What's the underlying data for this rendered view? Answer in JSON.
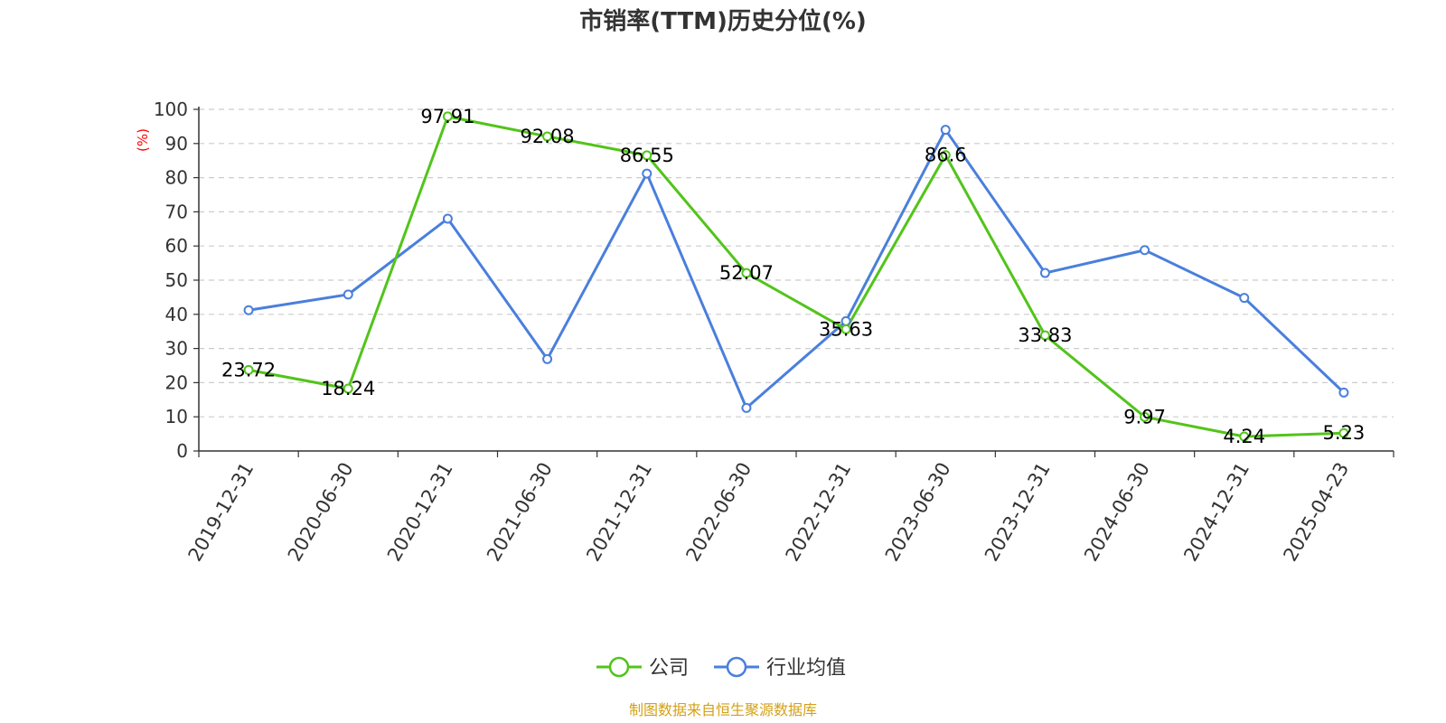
{
  "colors": {
    "company": "#52c41a",
    "industry": "#4a7fdc",
    "unit": "#ff0000",
    "source": "#d4a017",
    "grid": "#cccccc",
    "axis": "#333333"
  },
  "chart_data": {
    "type": "line",
    "title": "市销率(TTM)历史分位(%)",
    "ylabel": "(%)",
    "ylim": [
      0,
      100
    ],
    "yticks": [
      0,
      10,
      20,
      30,
      40,
      50,
      60,
      70,
      80,
      90,
      100
    ],
    "grid": true,
    "legend_position": "bottom-center",
    "categories": [
      "2019-12-31",
      "2020-06-30",
      "2020-12-31",
      "2021-06-30",
      "2021-12-31",
      "2022-06-30",
      "2022-12-31",
      "2023-06-30",
      "2023-12-31",
      "2024-06-30",
      "2024-12-31",
      "2025-04-23"
    ],
    "series": [
      {
        "name": "公司",
        "values": [
          23.72,
          18.24,
          97.91,
          92.08,
          86.55,
          52.07,
          35.63,
          86.6,
          33.83,
          9.97,
          4.24,
          5.23
        ],
        "labels": [
          "23.72",
          "18.24",
          "97.91",
          "92.08",
          "86.55",
          "52.07",
          "35.63",
          "86.6",
          "33.83",
          "9.97",
          "4.24",
          "5.23"
        ]
      },
      {
        "name": "行业均值",
        "values": [
          41.2,
          45.8,
          68.0,
          26.9,
          81.2,
          12.6,
          38.0,
          94.0,
          52.1,
          58.8,
          44.8,
          17.1
        ]
      }
    ]
  },
  "source": "制图数据来自恒生聚源数据库"
}
